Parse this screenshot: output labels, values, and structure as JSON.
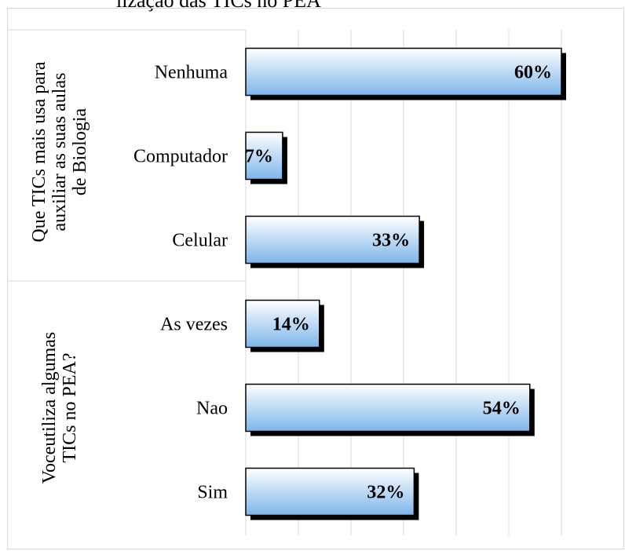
{
  "header": {
    "title_fragment": "lização das TICs no PEA"
  },
  "chart_data": {
    "type": "bar",
    "orientation": "horizontal",
    "unit": "%",
    "xlim": [
      0,
      70
    ],
    "grid": true,
    "groups": [
      {
        "label": "Que TICs mais usa para auxiliar as suas aulas de Biologia",
        "categories": [
          "Nenhuma",
          "Computador",
          "Celular"
        ],
        "values": [
          60,
          7,
          33
        ],
        "labels": [
          "60%",
          "7%",
          "33%"
        ]
      },
      {
        "label": "Voceutiliza algumas TICs no PEA?",
        "categories": [
          "As vezes",
          "Nao",
          "Sim"
        ],
        "values": [
          14,
          54,
          32
        ],
        "labels": [
          "14%",
          "54%",
          "32%"
        ]
      }
    ],
    "colors": {
      "bar_top": "#ffffff",
      "bar_bottom": "#7db6ea",
      "bar_border": "#000000",
      "shadow": "#000000",
      "grid": "#d9d9d9"
    }
  }
}
